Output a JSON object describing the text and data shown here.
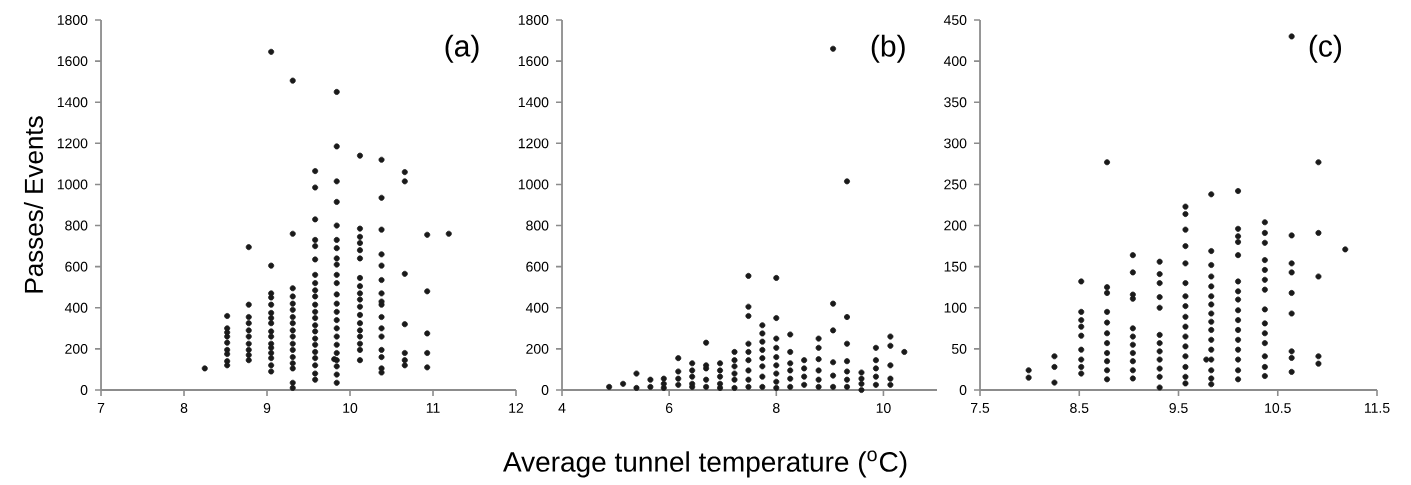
{
  "chart_data": [
    {
      "type": "scatter",
      "title": "(a)",
      "ylabel": "Passes/ Events",
      "color": "#1a1a1a",
      "marker": "circle",
      "xlim": [
        7,
        12
      ],
      "xticks": [
        7,
        8,
        9,
        10,
        11,
        12
      ],
      "ylim": [
        0,
        1800
      ],
      "yticks": [
        0,
        200,
        400,
        600,
        800,
        1000,
        1200,
        1400,
        1600,
        1800
      ],
      "x": [
        8.25,
        8.52,
        8.52,
        8.52,
        8.52,
        8.52,
        8.52,
        8.52,
        8.52,
        8.52,
        8.78,
        8.78,
        8.78,
        8.78,
        8.78,
        8.78,
        8.78,
        8.78,
        8.78,
        8.78,
        9.05,
        9.05,
        9.05,
        9.05,
        9.05,
        9.05,
        9.05,
        9.05,
        9.05,
        9.05,
        9.05,
        9.05,
        9.05,
        9.05,
        9.05,
        9.05,
        9.31,
        9.31,
        9.31,
        9.31,
        9.31,
        9.31,
        9.31,
        9.31,
        9.31,
        9.31,
        9.31,
        9.31,
        9.31,
        9.31,
        9.31,
        9.31,
        9.31,
        9.58,
        9.58,
        9.58,
        9.58,
        9.58,
        9.58,
        9.58,
        9.58,
        9.58,
        9.58,
        9.58,
        9.58,
        9.58,
        9.58,
        9.58,
        9.58,
        9.58,
        9.58,
        9.58,
        9.58,
        9.58,
        9.58,
        9.84,
        9.84,
        9.84,
        9.84,
        9.84,
        9.84,
        9.84,
        9.84,
        9.84,
        9.84,
        9.84,
        9.84,
        9.84,
        9.84,
        9.84,
        9.84,
        9.84,
        9.84,
        9.84,
        9.84,
        9.84,
        9.84,
        9.84,
        9.81,
        10.12,
        10.12,
        10.12,
        10.12,
        10.12,
        10.12,
        10.12,
        10.12,
        10.12,
        10.12,
        10.12,
        10.12,
        10.12,
        10.12,
        10.12,
        10.12,
        10.12,
        10.12,
        10.38,
        10.38,
        10.38,
        10.38,
        10.38,
        10.38,
        10.38,
        10.38,
        10.38,
        10.38,
        10.38,
        10.38,
        10.38,
        10.38,
        10.38,
        10.38,
        10.66,
        10.66,
        10.66,
        10.66,
        10.66,
        10.66,
        10.66,
        10.93,
        10.93,
        10.93,
        10.93,
        10.93,
        11.19
      ],
      "values": [
        105,
        360,
        300,
        280,
        260,
        230,
        195,
        175,
        140,
        120,
        695,
        415,
        355,
        325,
        290,
        260,
        225,
        195,
        170,
        145,
        1645,
        605,
        470,
        450,
        415,
        375,
        350,
        325,
        285,
        260,
        225,
        205,
        180,
        155,
        120,
        90,
        1505,
        760,
        495,
        455,
        420,
        390,
        355,
        325,
        290,
        260,
        225,
        195,
        160,
        130,
        105,
        35,
        10,
        1065,
        985,
        830,
        730,
        700,
        635,
        560,
        520,
        485,
        455,
        415,
        380,
        350,
        315,
        285,
        250,
        220,
        185,
        155,
        120,
        80,
        50,
        1450,
        1185,
        1015,
        915,
        800,
        730,
        690,
        640,
        610,
        560,
        520,
        465,
        420,
        380,
        340,
        300,
        260,
        220,
        180,
        145,
        115,
        75,
        35,
        150,
        1140,
        785,
        745,
        715,
        680,
        640,
        545,
        505,
        470,
        440,
        405,
        365,
        325,
        290,
        260,
        225,
        195,
        145,
        1120,
        935,
        780,
        660,
        605,
        535,
        470,
        430,
        415,
        355,
        300,
        260,
        195,
        160,
        105,
        85,
        1060,
        1015,
        565,
        320,
        180,
        145,
        120,
        755,
        480,
        275,
        180,
        110,
        760
      ]
    },
    {
      "type": "scatter",
      "title": "(b)",
      "xlabel": "Average tunnel temperature ($^{o}$C)",
      "color": "#1a1a1a",
      "marker": "circle",
      "xlim": [
        4,
        11
      ],
      "xticks": [
        4,
        6,
        8,
        10
      ],
      "ylim": [
        0,
        1800
      ],
      "yticks": [
        0,
        200,
        400,
        600,
        800,
        1000,
        1200,
        1400,
        1600,
        1800
      ],
      "x": [
        4.88,
        5.14,
        5.39,
        5.39,
        5.65,
        5.65,
        5.9,
        5.9,
        5.9,
        6.17,
        6.17,
        6.17,
        6.17,
        6.43,
        6.43,
        6.43,
        6.43,
        6.43,
        6.69,
        6.69,
        6.69,
        6.69,
        6.69,
        6.95,
        6.95,
        6.95,
        6.95,
        6.95,
        7.22,
        7.22,
        7.22,
        7.22,
        7.22,
        7.22,
        7.48,
        7.48,
        7.48,
        7.48,
        7.48,
        7.48,
        7.48,
        7.48,
        7.48,
        7.74,
        7.74,
        7.74,
        7.74,
        7.74,
        7.74,
        7.74,
        7.74,
        8.0,
        8.0,
        8.0,
        8.0,
        8.0,
        8.0,
        8.0,
        8.0,
        8.0,
        8.26,
        8.26,
        8.26,
        8.26,
        8.26,
        8.26,
        8.52,
        8.52,
        8.52,
        8.52,
        8.79,
        8.79,
        8.79,
        8.79,
        8.79,
        8.79,
        9.06,
        9.06,
        9.06,
        9.06,
        9.06,
        9.06,
        9.32,
        9.32,
        9.32,
        9.32,
        9.32,
        9.32,
        9.32,
        9.59,
        9.59,
        9.59,
        9.59,
        9.86,
        9.86,
        9.86,
        9.86,
        9.86,
        10.13,
        10.13,
        10.13,
        10.13,
        10.13,
        10.39
      ],
      "values": [
        15,
        30,
        80,
        10,
        50,
        15,
        55,
        30,
        10,
        155,
        90,
        55,
        25,
        130,
        95,
        65,
        30,
        15,
        230,
        120,
        105,
        50,
        15,
        130,
        95,
        65,
        30,
        10,
        185,
        145,
        115,
        80,
        50,
        10,
        555,
        405,
        360,
        225,
        185,
        145,
        95,
        50,
        15,
        315,
        275,
        235,
        195,
        155,
        115,
        65,
        15,
        545,
        350,
        250,
        205,
        160,
        120,
        80,
        40,
        10,
        270,
        185,
        130,
        95,
        55,
        15,
        145,
        105,
        65,
        25,
        250,
        205,
        150,
        95,
        50,
        15,
        1660,
        420,
        290,
        135,
        70,
        15,
        1015,
        355,
        225,
        140,
        90,
        50,
        15,
        85,
        55,
        30,
        0,
        205,
        145,
        105,
        65,
        25,
        260,
        215,
        120,
        55,
        25,
        185
      ]
    },
    {
      "type": "scatter",
      "title": "(c)",
      "color": "#1a1a1a",
      "marker": "circle",
      "xlim": [
        7.5,
        11.5
      ],
      "xticks": [
        7.5,
        8.5,
        9.5,
        10.5,
        11.5
      ],
      "ylim": [
        0,
        450
      ],
      "yticks": [
        0,
        50,
        100,
        150,
        200,
        250,
        300,
        350,
        400,
        450
      ],
      "x": [
        7.99,
        7.99,
        8.25,
        8.25,
        8.25,
        8.52,
        8.52,
        8.52,
        8.52,
        8.52,
        8.52,
        8.52,
        8.52,
        8.52,
        8.78,
        8.78,
        8.78,
        8.78,
        8.78,
        8.78,
        8.78,
        8.78,
        8.78,
        8.78,
        8.78,
        9.04,
        9.04,
        9.04,
        9.04,
        9.04,
        9.04,
        9.04,
        9.04,
        9.04,
        9.04,
        9.04,
        9.31,
        9.31,
        9.31,
        9.31,
        9.31,
        9.31,
        9.31,
        9.31,
        9.31,
        9.31,
        9.31,
        9.31,
        9.57,
        9.57,
        9.57,
        9.57,
        9.57,
        9.57,
        9.57,
        9.57,
        9.57,
        9.57,
        9.57,
        9.57,
        9.57,
        9.57,
        9.57,
        9.57,
        9.83,
        9.83,
        9.83,
        9.83,
        9.83,
        9.83,
        9.83,
        9.83,
        9.83,
        9.83,
        9.83,
        9.83,
        9.83,
        9.83,
        9.83,
        9.83,
        9.78,
        10.1,
        10.1,
        10.1,
        10.1,
        10.1,
        10.1,
        10.1,
        10.1,
        10.1,
        10.1,
        10.1,
        10.1,
        10.1,
        10.1,
        10.1,
        10.1,
        10.37,
        10.37,
        10.37,
        10.37,
        10.37,
        10.37,
        10.37,
        10.37,
        10.37,
        10.37,
        10.37,
        10.37,
        10.37,
        10.37,
        10.64,
        10.64,
        10.64,
        10.64,
        10.64,
        10.64,
        10.64,
        10.64,
        10.64,
        10.91,
        10.91,
        10.91,
        10.91,
        10.91,
        11.18
      ],
      "values": [
        24,
        15,
        41,
        28,
        9,
        132,
        95,
        85,
        77,
        66,
        49,
        37,
        28,
        20,
        277,
        125,
        118,
        95,
        82,
        69,
        57,
        45,
        35,
        24,
        13,
        164,
        143,
        116,
        111,
        75,
        65,
        55,
        45,
        35,
        24,
        14,
        156,
        141,
        130,
        113,
        100,
        67,
        57,
        47,
        37,
        26,
        16,
        3,
        223,
        214,
        195,
        175,
        154,
        130,
        114,
        102,
        89,
        77,
        65,
        53,
        41,
        28,
        16,
        8,
        238,
        169,
        152,
        138,
        126,
        114,
        104,
        93,
        83,
        73,
        61,
        49,
        37,
        24,
        14,
        7,
        37,
        242,
        196,
        187,
        180,
        164,
        132,
        120,
        110,
        97,
        85,
        73,
        61,
        49,
        37,
        24,
        13,
        204,
        191,
        179,
        158,
        146,
        134,
        122,
        98,
        81,
        69,
        57,
        41,
        28,
        17,
        430,
        188,
        154,
        143,
        118,
        93,
        47,
        39,
        22,
        277,
        191,
        138,
        41,
        32,
        171
      ]
    }
  ]
}
